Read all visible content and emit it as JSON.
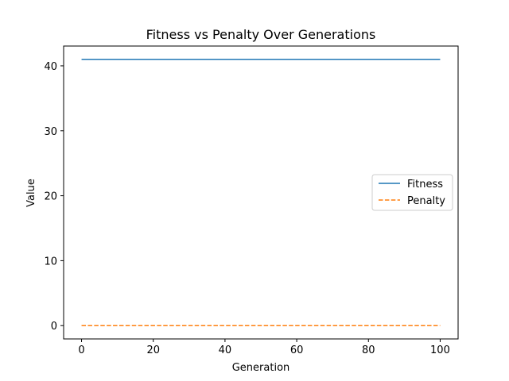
{
  "chart_data": {
    "type": "line",
    "title": "Fitness vs Penalty Over Generations",
    "xlabel": "Generation",
    "ylabel": "Value",
    "xlim": [
      -5,
      105
    ],
    "ylim": [
      -2.05,
      43.05
    ],
    "xticks": [
      0,
      20,
      40,
      60,
      80,
      100
    ],
    "yticks": [
      0,
      10,
      20,
      30,
      40
    ],
    "xtick_labels": [
      "0",
      "20",
      "40",
      "60",
      "80",
      "100"
    ],
    "ytick_labels": [
      "0",
      "10",
      "20",
      "30",
      "40"
    ],
    "grid": false,
    "legend_position": "center right",
    "series": [
      {
        "name": "Fitness",
        "x": [
          0,
          100
        ],
        "y": [
          41,
          41
        ],
        "color": "#1f77b4",
        "linestyle": "solid"
      },
      {
        "name": "Penalty",
        "x": [
          0,
          100
        ],
        "y": [
          0,
          0
        ],
        "color": "#ff7f0e",
        "linestyle": "dashed"
      }
    ]
  }
}
